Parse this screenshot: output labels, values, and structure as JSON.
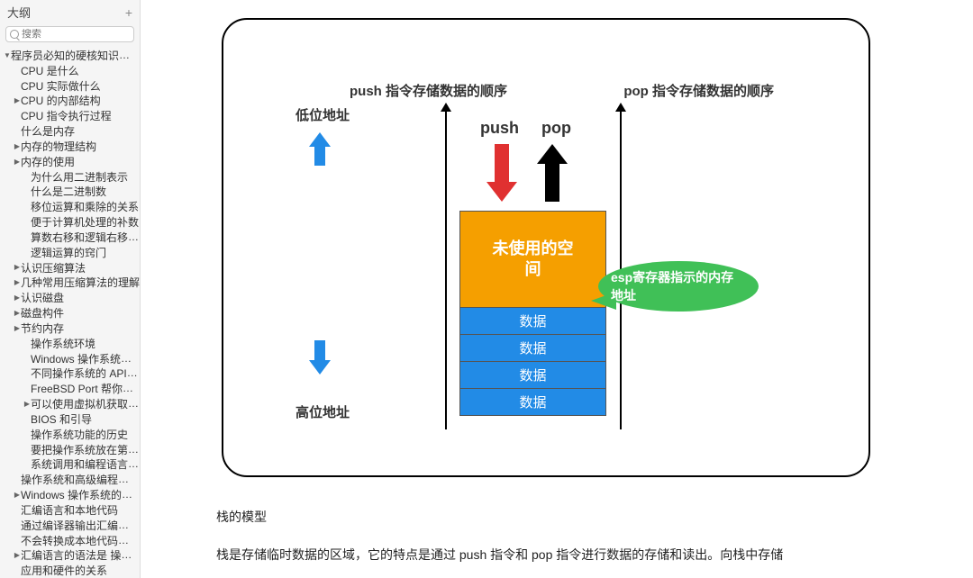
{
  "sidebar": {
    "title": "大纲",
    "plus": "+",
    "search_placeholder": "搜索",
    "items": [
      {
        "label": "程序员必知的硬核知识大全",
        "depth": 0,
        "mark": "down"
      },
      {
        "label": "CPU 是什么",
        "depth": 1,
        "mark": ""
      },
      {
        "label": "CPU 实际做什么",
        "depth": 1,
        "mark": ""
      },
      {
        "label": "CPU 的内部结构",
        "depth": 1,
        "mark": "right"
      },
      {
        "label": "CPU 指令执行过程",
        "depth": 1,
        "mark": ""
      },
      {
        "label": "什么是内存",
        "depth": 1,
        "mark": ""
      },
      {
        "label": "内存的物理结构",
        "depth": 1,
        "mark": "right"
      },
      {
        "label": "内存的使用",
        "depth": 1,
        "mark": "right"
      },
      {
        "label": "为什么用二进制表示",
        "depth": 2,
        "mark": ""
      },
      {
        "label": "什么是二进制数",
        "depth": 2,
        "mark": ""
      },
      {
        "label": "移位运算和乘除的关系",
        "depth": 2,
        "mark": ""
      },
      {
        "label": "便于计算机处理的补数",
        "depth": 2,
        "mark": ""
      },
      {
        "label": "算数右移和逻辑右移的区别",
        "depth": 2,
        "mark": ""
      },
      {
        "label": "逻辑运算的窍门",
        "depth": 2,
        "mark": ""
      },
      {
        "label": "认识压缩算法",
        "depth": 1,
        "mark": "right"
      },
      {
        "label": "几种常用压缩算法的理解",
        "depth": 1,
        "mark": "right"
      },
      {
        "label": "认识磁盘",
        "depth": 1,
        "mark": "right"
      },
      {
        "label": "磁盘构件",
        "depth": 1,
        "mark": "right"
      },
      {
        "label": "节约内存",
        "depth": 1,
        "mark": "right"
      },
      {
        "label": "操作系统环境",
        "depth": 2,
        "mark": ""
      },
      {
        "label": "Windows 操作系统克服了 C...",
        "depth": 2,
        "mark": ""
      },
      {
        "label": "不同操作系统的 API 差异性",
        "depth": 2,
        "mark": ""
      },
      {
        "label": "FreeBSD Port 帮你轻松使...",
        "depth": 2,
        "mark": ""
      },
      {
        "label": "可以使用虚拟机获取其他环境",
        "depth": 2,
        "mark": "right"
      },
      {
        "label": "BIOS 和引导",
        "depth": 2,
        "mark": ""
      },
      {
        "label": "操作系统功能的历史",
        "depth": 2,
        "mark": ""
      },
      {
        "label": "要把操作系统放在第一位",
        "depth": 2,
        "mark": ""
      },
      {
        "label": "系统调用和编程语言的移植性",
        "depth": 2,
        "mark": ""
      },
      {
        "label": "操作系统和高级编程语言...",
        "depth": 1,
        "mark": ""
      },
      {
        "label": "Windows 操作系统的特征",
        "depth": 1,
        "mark": "right"
      },
      {
        "label": "汇编语言和本地代码",
        "depth": 1,
        "mark": ""
      },
      {
        "label": "通过编译器输出汇编语言...",
        "depth": 1,
        "mark": ""
      },
      {
        "label": "不会转换成本地代码的伪...",
        "depth": 1,
        "mark": ""
      },
      {
        "label": "汇编语言的语法是 操作码 +...",
        "depth": 1,
        "mark": "right"
      },
      {
        "label": "应用和硬件的关系",
        "depth": 1,
        "mark": ""
      }
    ]
  },
  "diagram": {
    "title_left": "push 指令存储数据的顺序",
    "title_right": "pop 指令存储数据的顺序",
    "low_addr": "低位地址",
    "high_addr": "高位地址",
    "push_label": "push",
    "pop_label": "pop",
    "unused_label": "未使用的空\n间",
    "data_label": "数据",
    "data_rows": 4,
    "callout": "esp寄存器指示的内存地址",
    "colors": {
      "blue_arrow": "#228be6",
      "red_arrow": "#e03131",
      "black_arrow": "#000000",
      "unused_bg": "#f59f00",
      "data_bg": "#228be6",
      "callout_bg": "#40c057",
      "frame_border": "#000000",
      "text_white": "#ffffff"
    }
  },
  "article": {
    "heading": "栈的模型",
    "para1": "栈是存储临时数据的区域，它的特点是通过 push 指令和 pop 指令进行数据的存储和读出。向栈中存储"
  }
}
